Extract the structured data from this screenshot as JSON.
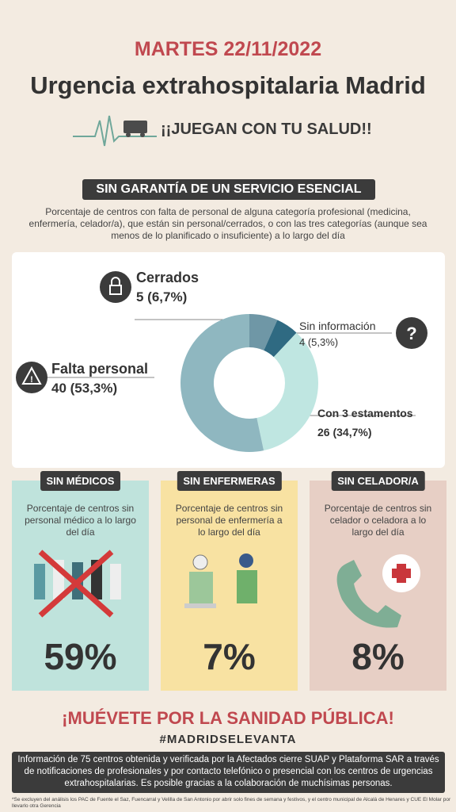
{
  "header": {
    "date": "MARTES 22/11/2022",
    "title": "Urgencia extrahospitalaria Madrid",
    "slogan": "¡¡JUEGAN CON TU SALUD!!"
  },
  "section": {
    "title": "SIN GARANTÍA DE UN SERVICIO  ESENCIAL",
    "description": "Porcentaje de centros con falta de personal de alguna categoría profesional (medicina, enfermería, celador/a), que están sin personal/cerrados, o con las tres categorías (aunque sea menos de lo planificado o insuficiente) a lo largo del día"
  },
  "chart_data": {
    "type": "donut",
    "categories": [
      "Cerrados",
      "Sin información",
      "Con 3 estamentos",
      "Falta personal"
    ],
    "values": [
      5,
      4,
      26,
      40
    ],
    "value_labels": [
      "5 (6,7%)",
      "4 (5,3%)",
      "26 (34,7%)",
      "40 (53,3%)"
    ],
    "colors": [
      "#6f97a6",
      "#2f6a82",
      "#bfe6e1",
      "#8fb7c0"
    ]
  },
  "cards": [
    {
      "title": "SIN MÉDICOS",
      "description": "Porcentaje de centros sin personal médico a lo largo del día",
      "value": "59%"
    },
    {
      "title": "SIN ENFERMERAS",
      "description": "Porcentaje de centros sin personal de enfermería a lo largo del día",
      "value": "7%"
    },
    {
      "title": "SIN CELADOR/A",
      "description": "Porcentaje de centros sin celador o celadora a lo largo del día",
      "value": "8%"
    }
  ],
  "footer": {
    "call": "¡MUÉVETE POR LA SANIDAD PÚBLICA!",
    "hashtag": "#MADRIDSELEVANTA",
    "info": "Información de 75 centros obtenida y verificada por la Afectados cierre SUAP y Plataforma SAR a través de notificaciones de profesionales y por contacto telefónico o presencial con los centros de urgencias extrahospitalarias. Es posible gracias a la colaboración de muchísimas personas.",
    "note": "*Se excluyen del análisis los PAC de Fuente el Saz, Fuencarral y Velilla de San Antonio por abrir solo fines de semana y festivos, y el centro municipal de Alcalá de Henares y CUE El Molar por llevarlo otra Gerencia"
  }
}
